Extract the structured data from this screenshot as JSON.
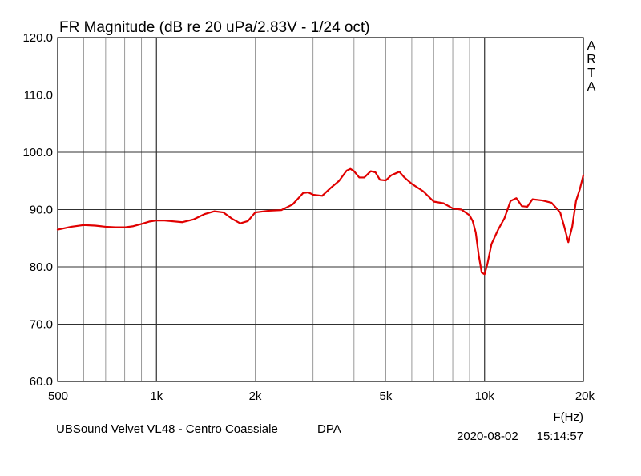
{
  "chart_data": {
    "type": "line",
    "title": "FR Magnitude (dB re 20 uPa/2.83V - 1/24 oct)",
    "xlabel": "F(Hz)",
    "ylabel": "",
    "xscale": "log",
    "xlim": [
      500,
      20000
    ],
    "ylim": [
      60,
      120
    ],
    "grid": true,
    "x_tick_values": [
      500,
      1000,
      2000,
      5000,
      10000,
      20000
    ],
    "x_tick_labels": [
      "500",
      "1k",
      "2k",
      "5k",
      "10k",
      "20k"
    ],
    "y_tick_values": [
      60,
      70,
      80,
      90,
      100,
      110,
      120
    ],
    "y_tick_labels": [
      "60.0",
      "70.0",
      "80.0",
      "90.0",
      "100.0",
      "110.0",
      "120.0"
    ],
    "series": [
      {
        "color": "#e00000",
        "x": [
          500,
          550,
          600,
          650,
          700,
          750,
          800,
          850,
          900,
          950,
          1000,
          1050,
          1100,
          1200,
          1300,
          1400,
          1500,
          1600,
          1700,
          1800,
          1900,
          2000,
          2200,
          2400,
          2600,
          2700,
          2800,
          2900,
          3000,
          3200,
          3400,
          3600,
          3800,
          3900,
          4000,
          4150,
          4300,
          4500,
          4650,
          4800,
          5000,
          5200,
          5500,
          5700,
          6000,
          6500,
          7000,
          7500,
          8000,
          8500,
          9000,
          9200,
          9400,
          9600,
          9800,
          10000,
          10200,
          10500,
          11000,
          11500,
          12000,
          12500,
          13000,
          13500,
          14000,
          15000,
          16000,
          17000,
          17500,
          18000,
          18500,
          19000,
          19500,
          20000
        ],
        "y": [
          86.5,
          87.0,
          87.3,
          87.2,
          87.0,
          86.9,
          86.9,
          87.1,
          87.5,
          87.9,
          88.1,
          88.1,
          88.0,
          87.8,
          88.3,
          89.2,
          89.7,
          89.5,
          88.4,
          87.6,
          88.0,
          89.5,
          89.8,
          89.9,
          90.9,
          91.9,
          92.9,
          93.0,
          92.6,
          92.4,
          93.8,
          95.0,
          96.8,
          97.1,
          96.7,
          95.6,
          95.6,
          96.7,
          96.5,
          95.2,
          95.1,
          96.0,
          96.6,
          95.6,
          94.5,
          93.2,
          91.4,
          91.1,
          90.2,
          90.0,
          89.0,
          88.0,
          86.0,
          82.0,
          79.0,
          78.7,
          80.5,
          84.0,
          86.5,
          88.5,
          91.5,
          92.0,
          90.6,
          90.5,
          91.8,
          91.6,
          91.2,
          89.5,
          87.0,
          84.3,
          87.0,
          91.5,
          93.5,
          96.0
        ]
      }
    ]
  },
  "side_label": [
    "A",
    "R",
    "T",
    "A"
  ],
  "footer": {
    "device": "UBSound Velvet VL48 - Centro Coassiale",
    "method": "DPA",
    "date": "2020-08-02",
    "time": "15:14:57"
  }
}
